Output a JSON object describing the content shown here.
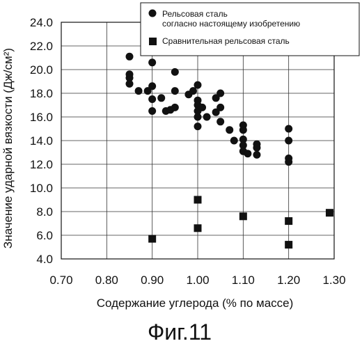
{
  "figure_caption": "Фиг.11",
  "chart_data": {
    "type": "scatter",
    "xlabel": "Содержание углерода (% по массе)",
    "ylabel": "Значение ударной вязкости (Дж/см²)",
    "xlim": [
      0.7,
      1.3
    ],
    "ylim": [
      4.0,
      24.0
    ],
    "x_ticks": [
      "0.70",
      "0.80",
      "0.90",
      "1.00",
      "1.10",
      "1.20",
      "1.30"
    ],
    "y_ticks": [
      "4.0",
      "6.0",
      "8.0",
      "10.0",
      "12.0",
      "14.0",
      "16.0",
      "18.0",
      "20.0",
      "22.0",
      "24.0"
    ],
    "grid": true,
    "legend_position": "top-right",
    "series": [
      {
        "name": "Рельсовая сталь согласно настоящему изобретению",
        "marker": "circle",
        "color": "#111111",
        "points": [
          [
            0.85,
            21.1
          ],
          [
            0.85,
            19.6
          ],
          [
            0.85,
            19.3
          ],
          [
            0.85,
            18.8
          ],
          [
            0.87,
            18.2
          ],
          [
            0.89,
            18.2
          ],
          [
            0.9,
            20.6
          ],
          [
            0.9,
            18.6
          ],
          [
            0.9,
            17.5
          ],
          [
            0.9,
            16.5
          ],
          [
            0.92,
            17.6
          ],
          [
            0.93,
            16.5
          ],
          [
            0.94,
            16.6
          ],
          [
            0.95,
            19.8
          ],
          [
            0.95,
            18.2
          ],
          [
            0.95,
            16.8
          ],
          [
            0.98,
            17.9
          ],
          [
            0.99,
            18.2
          ],
          [
            1.0,
            18.7
          ],
          [
            1.0,
            17.4
          ],
          [
            1.0,
            17.0
          ],
          [
            1.0,
            16.5
          ],
          [
            1.0,
            16.0
          ],
          [
            1.0,
            15.2
          ],
          [
            1.01,
            16.8
          ],
          [
            1.02,
            16.0
          ],
          [
            1.04,
            17.6
          ],
          [
            1.04,
            16.4
          ],
          [
            1.05,
            18.0
          ],
          [
            1.05,
            16.8
          ],
          [
            1.05,
            15.6
          ],
          [
            1.07,
            14.9
          ],
          [
            1.08,
            14.0
          ],
          [
            1.1,
            15.3
          ],
          [
            1.1,
            14.9
          ],
          [
            1.1,
            14.1
          ],
          [
            1.1,
            13.6
          ],
          [
            1.1,
            13.1
          ],
          [
            1.11,
            12.9
          ],
          [
            1.13,
            13.7
          ],
          [
            1.13,
            13.4
          ],
          [
            1.13,
            12.8
          ],
          [
            1.2,
            15.0
          ],
          [
            1.2,
            14.0
          ],
          [
            1.2,
            12.5
          ],
          [
            1.2,
            12.2
          ]
        ]
      },
      {
        "name": "Сравнительная рельсовая сталь",
        "marker": "square",
        "color": "#111111",
        "points": [
          [
            0.9,
            5.7
          ],
          [
            1.0,
            9.0
          ],
          [
            1.0,
            6.6
          ],
          [
            1.1,
            7.6
          ],
          [
            1.2,
            7.2
          ],
          [
            1.2,
            5.2
          ],
          [
            1.29,
            7.9
          ]
        ]
      }
    ]
  }
}
